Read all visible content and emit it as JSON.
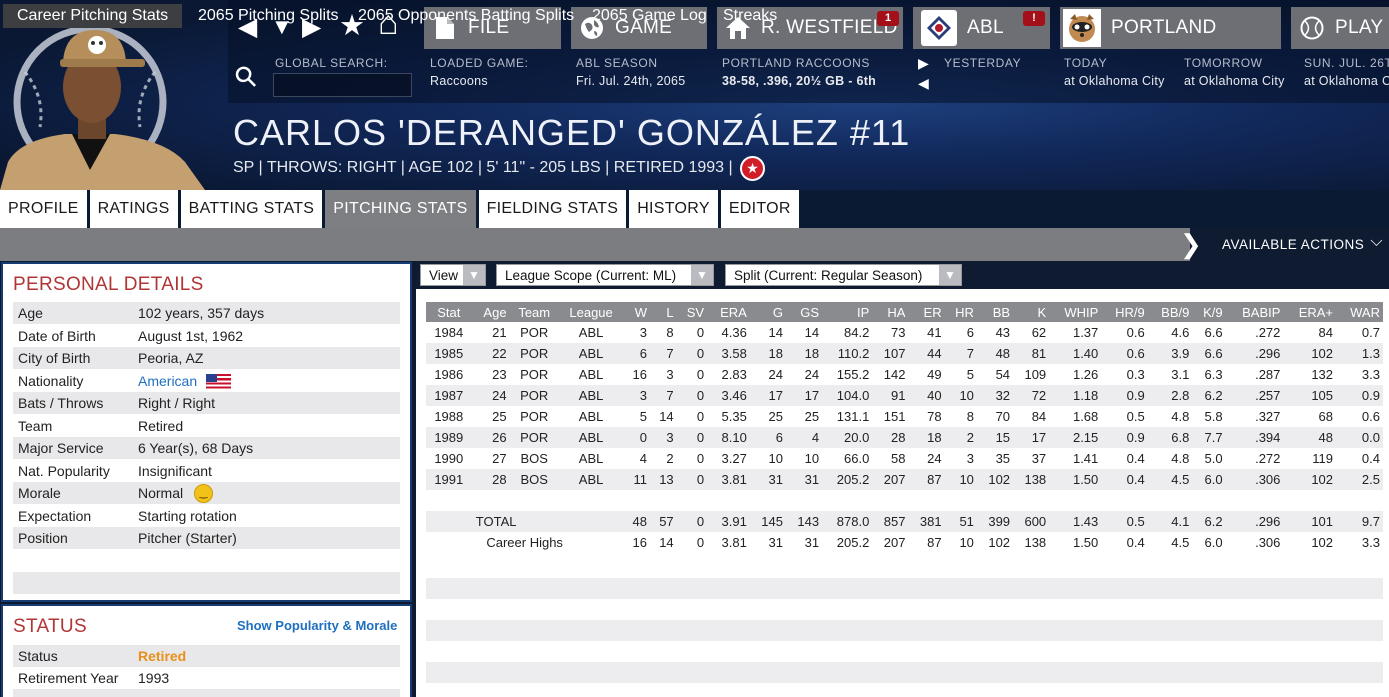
{
  "nav": {
    "back_icon": "◀",
    "down_icon": "▼",
    "fwd_icon": "▶",
    "star_icon": "★",
    "home_icon": "⌂",
    "search_icon": "⚲"
  },
  "topbar": {
    "file": {
      "label": "FILE"
    },
    "game": {
      "label": "GAME"
    },
    "manager": {
      "label": "R. WESTFIELD",
      "badge": "1"
    },
    "league": {
      "label": "ABL",
      "badge": "!"
    },
    "team": {
      "label": "PORTLAND"
    },
    "play": {
      "label": "PLAY"
    }
  },
  "infostrip": {
    "global_search_label": "GLOBAL SEARCH:",
    "loaded_game_label": "LOADED GAME:",
    "loaded_game_value": "Raccoons",
    "season_label": "ABL SEASON",
    "season_value": "Fri. Jul. 24th, 2065",
    "team_label": "PORTLAND RACCOONS",
    "team_value": "38-58, .396, 20½ GB - 6th",
    "yesterday_label": "YESTERDAY",
    "today_label": "TODAY",
    "today_value": "at Oklahoma City",
    "tomorrow_label": "TOMORROW",
    "tomorrow_value": "at Oklahoma City",
    "sun_label": "SUN. JUL. 26T",
    "sun_value": "at Oklahoma C"
  },
  "player": {
    "name": "CARLOS 'DERANGED' GONZÁLEZ  #11",
    "info": "SP | THROWS: RIGHT  |  AGE 102  |  5' 11\" - 205 LBS  |  RETIRED 1993  |",
    "hof_icon": "★"
  },
  "main_tabs": [
    "PROFILE",
    "RATINGS",
    "BATTING STATS",
    "PITCHING STATS",
    "FIELDING STATS",
    "HISTORY",
    "EDITOR"
  ],
  "sub_tabs": [
    "Career Pitching Stats",
    "2065 Pitching Splits",
    "2065 Opponents Batting Splits",
    "2065 Game Log",
    "Streaks"
  ],
  "available_actions": "AVAILABLE ACTIONS",
  "personal": {
    "title": "PERSONAL DETAILS",
    "rows": [
      {
        "k": "Age",
        "v": "102 years, 357 days"
      },
      {
        "k": "Date of Birth",
        "v": "August 1st, 1962"
      },
      {
        "k": "City of Birth",
        "v": "Peoria, AZ"
      },
      {
        "k": "Nationality",
        "v": "American"
      },
      {
        "k": "Bats / Throws",
        "v": "Right / Right"
      },
      {
        "k": "Team",
        "v": "Retired"
      },
      {
        "k": "Major Service",
        "v": "6 Year(s), 68 Days"
      },
      {
        "k": "Nat. Popularity",
        "v": "Insignificant"
      },
      {
        "k": "Morale",
        "v": "Normal"
      },
      {
        "k": "Expectation",
        "v": "Starting rotation"
      },
      {
        "k": "Position",
        "v": "Pitcher (Starter)"
      }
    ]
  },
  "status": {
    "title": "STATUS",
    "link": "Show Popularity & Morale",
    "rows": [
      {
        "k": "Status",
        "v": "Retired"
      },
      {
        "k": "Retirement Year",
        "v": "1993"
      }
    ]
  },
  "toolbar": {
    "view": "View",
    "scope": "League Scope  (Current: ML)",
    "split": "Split  (Current: Regular Season)",
    "arrow": "▼"
  },
  "table": {
    "headers": [
      "Stat",
      "Age",
      "Team",
      "League",
      "W",
      "L",
      "SV",
      "ERA",
      "G",
      "GS",
      "IP",
      "HA",
      "ER",
      "HR",
      "BB",
      "K",
      "WHIP",
      "HR/9",
      "BB/9",
      "K/9",
      "BABIP",
      "ERA+",
      "WAR"
    ],
    "rows": [
      [
        "1984",
        "21",
        "POR",
        "ABL",
        "3",
        "8",
        "0",
        "4.36",
        "14",
        "14",
        "84.2",
        "73",
        "41",
        "6",
        "43",
        "62",
        "1.37",
        "0.6",
        "4.6",
        "6.6",
        ".272",
        "84",
        "0.7"
      ],
      [
        "1985",
        "22",
        "POR",
        "ABL",
        "6",
        "7",
        "0",
        "3.58",
        "18",
        "18",
        "110.2",
        "107",
        "44",
        "7",
        "48",
        "81",
        "1.40",
        "0.6",
        "3.9",
        "6.6",
        ".296",
        "102",
        "1.3"
      ],
      [
        "1986",
        "23",
        "POR",
        "ABL",
        "16",
        "3",
        "0",
        "2.83",
        "24",
        "24",
        "155.2",
        "142",
        "49",
        "5",
        "54",
        "109",
        "1.26",
        "0.3",
        "3.1",
        "6.3",
        ".287",
        "132",
        "3.3"
      ],
      [
        "1987",
        "24",
        "POR",
        "ABL",
        "3",
        "7",
        "0",
        "3.46",
        "17",
        "17",
        "104.0",
        "91",
        "40",
        "10",
        "32",
        "72",
        "1.18",
        "0.9",
        "2.8",
        "6.2",
        ".257",
        "105",
        "0.9"
      ],
      [
        "1988",
        "25",
        "POR",
        "ABL",
        "5",
        "14",
        "0",
        "5.35",
        "25",
        "25",
        "131.1",
        "151",
        "78",
        "8",
        "70",
        "84",
        "1.68",
        "0.5",
        "4.8",
        "5.8",
        ".327",
        "68",
        "0.6"
      ],
      [
        "1989",
        "26",
        "POR",
        "ABL",
        "0",
        "3",
        "0",
        "8.10",
        "6",
        "4",
        "20.0",
        "28",
        "18",
        "2",
        "15",
        "17",
        "2.15",
        "0.9",
        "6.8",
        "7.7",
        ".394",
        "48",
        "0.0"
      ],
      [
        "1990",
        "27",
        "BOS",
        "ABL",
        "4",
        "2",
        "0",
        "3.27",
        "10",
        "10",
        "66.0",
        "58",
        "24",
        "3",
        "35",
        "37",
        "1.41",
        "0.4",
        "4.8",
        "5.0",
        ".272",
        "119",
        "0.4"
      ],
      [
        "1991",
        "28",
        "BOS",
        "ABL",
        "11",
        "13",
        "0",
        "3.81",
        "31",
        "31",
        "205.2",
        "207",
        "87",
        "10",
        "102",
        "138",
        "1.50",
        "0.4",
        "4.5",
        "6.0",
        ".306",
        "102",
        "2.5"
      ],
      [
        "",
        "",
        "",
        "",
        "",
        "",
        "",
        "",
        "",
        "",
        "",
        "",
        "",
        "",
        "",
        "",
        "",
        "",
        "",
        "",
        "",
        "",
        ""
      ],
      [
        "TOTAL",
        "",
        "",
        "",
        "48",
        "57",
        "0",
        "3.91",
        "145",
        "143",
        "878.0",
        "857",
        "381",
        "51",
        "399",
        "600",
        "1.43",
        "0.5",
        "4.1",
        "6.2",
        ".296",
        "101",
        "9.7"
      ],
      [
        "Career Highs",
        "",
        "",
        "",
        "16",
        "14",
        "0",
        "3.81",
        "31",
        "31",
        "205.2",
        "207",
        "87",
        "10",
        "102",
        "138",
        "1.50",
        "0.4",
        "4.5",
        "6.0",
        ".306",
        "102",
        "3.3"
      ]
    ]
  },
  "colors": {
    "accent_red": "#b23535",
    "link_blue": "#1f6fc0",
    "retired_orange": "#e8901a",
    "header_gray": "#8a8b8f"
  }
}
